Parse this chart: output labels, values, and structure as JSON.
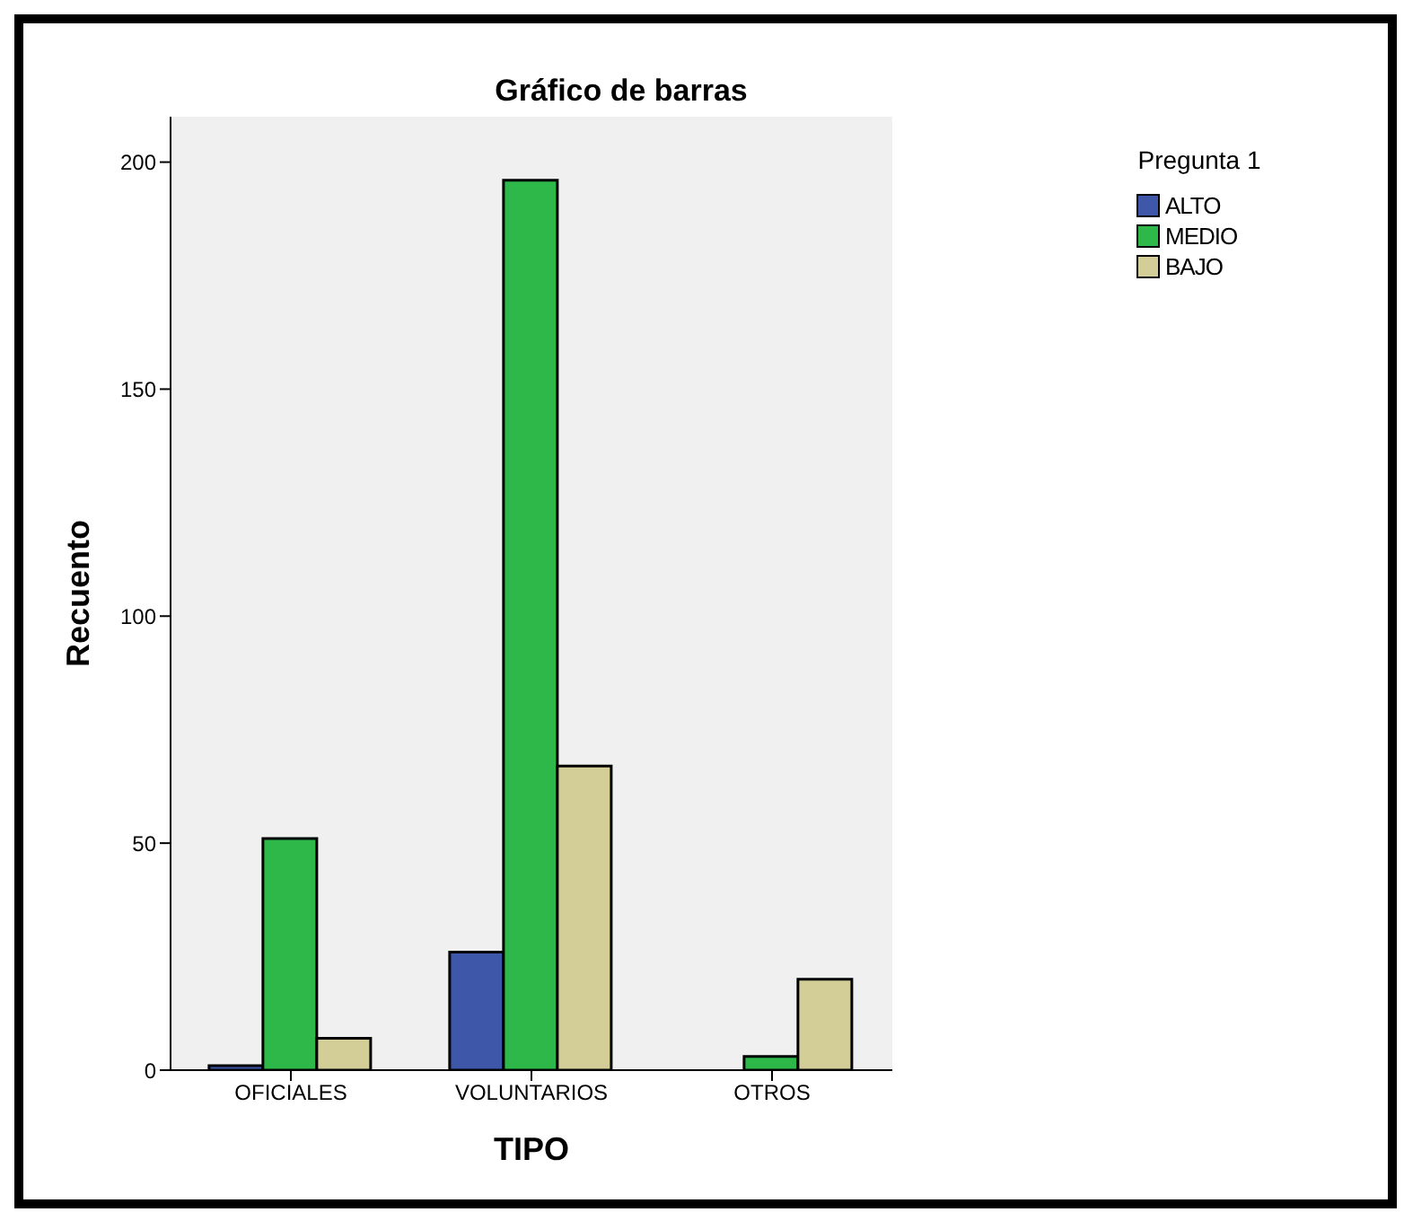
{
  "chart_data": {
    "type": "bar",
    "title": "Gráfico de barras",
    "xlabel": "TIPO",
    "ylabel": "Recuento",
    "legend_title": "Pregunta 1",
    "categories": [
      "OFICIALES",
      "VOLUNTARIOS",
      "OTROS"
    ],
    "series": [
      {
        "name": "ALTO",
        "color": "#3f57a8",
        "values": [
          1,
          26,
          null
        ]
      },
      {
        "name": "MEDIO",
        "color": "#2eb84a",
        "values": [
          51,
          196,
          3
        ]
      },
      {
        "name": "BAJO",
        "color": "#d3ce98",
        "values": [
          7,
          67,
          20
        ]
      }
    ],
    "ylim": [
      0,
      210
    ],
    "yticks": [
      0,
      50,
      100,
      150,
      200
    ],
    "grid": false,
    "legend": "top right"
  }
}
